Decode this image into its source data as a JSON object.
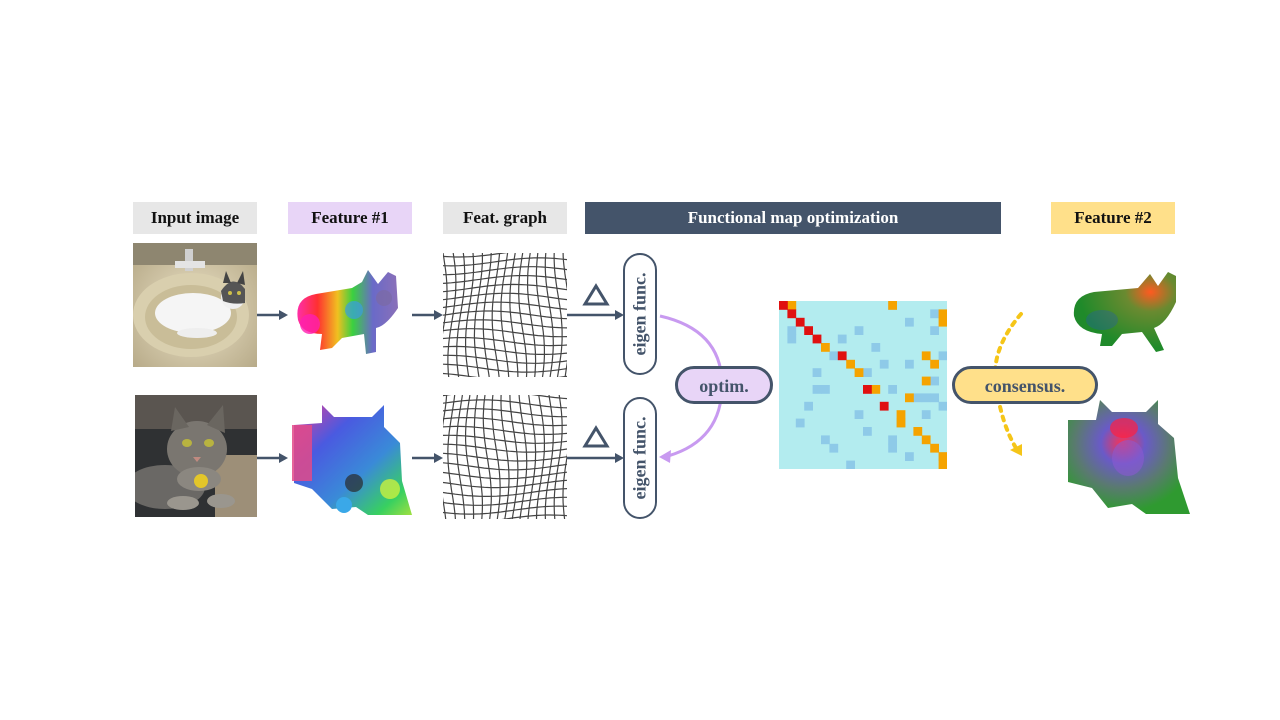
{
  "headers": {
    "input": "Input image",
    "feature1": "Feature #1",
    "graph": "Feat. graph",
    "fmap": "Functional map optimization",
    "feature2": "Feature #2"
  },
  "nodes": {
    "eigen_top": "eigen func.",
    "eigen_bottom": "eigen func.",
    "optim": "optim.",
    "consensus": "consensus."
  },
  "colors": {
    "dark": "#44546a",
    "lavender": "#e8d5f7",
    "gold": "#ffe08a",
    "purple_arc": "#c89af0",
    "gold_arc": "#f5c518",
    "matrix_bg": "#b3ecef",
    "matrix_light": "#8ecae8",
    "matrix_orange": "#f5a300",
    "matrix_red": "#e01010"
  },
  "icons": [
    "laplacian-triangle-icon",
    "arrow-right-icon"
  ]
}
